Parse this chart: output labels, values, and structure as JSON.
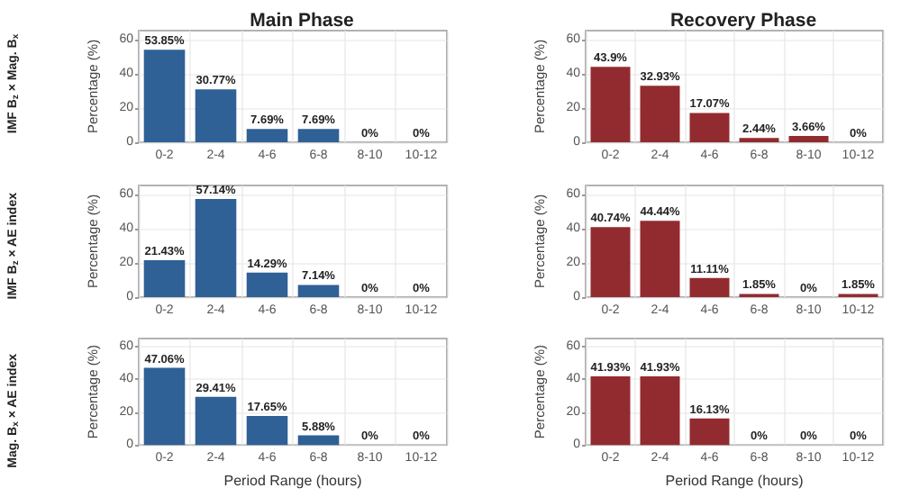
{
  "chart_data": [
    {
      "type": "bar",
      "title": "Main Phase",
      "ylabel": "Percentage (%)",
      "annotations": [
        "IMF B$_{z}$ × Mag. B$_{x}$"
      ],
      "categories": [
        "0-2",
        "2-4",
        "4-6",
        "6-8",
        "8-10",
        "10-12"
      ],
      "values": [
        53.85,
        30.77,
        7.69,
        7.69,
        0,
        0
      ],
      "value_labels": [
        "53.85%",
        "30.77%",
        "7.69%",
        "7.69%",
        "0%",
        "0%"
      ],
      "color": "#2f6096",
      "ylim": [
        0,
        65
      ],
      "yticks": [
        0,
        20,
        40,
        60
      ],
      "grid": true
    },
    {
      "type": "bar",
      "title": "Recovery Phase",
      "ylabel": "Percentage (%)",
      "categories": [
        "0-2",
        "2-4",
        "4-6",
        "6-8",
        "8-10",
        "10-12"
      ],
      "values": [
        43.9,
        32.93,
        17.07,
        2.44,
        3.66,
        0
      ],
      "value_labels": [
        "43.9%",
        "32.93%",
        "17.07%",
        "2.44%",
        "3.66%",
        "0%"
      ],
      "color": "#922b2f",
      "ylim": [
        0,
        65
      ],
      "yticks": [
        0,
        20,
        40,
        60
      ],
      "grid": true
    },
    {
      "type": "bar",
      "ylabel": "Percentage (%)",
      "annotations": [
        "IMF B$_{z}$ × AE index"
      ],
      "categories": [
        "0-2",
        "2-4",
        "4-6",
        "6-8",
        "8-10",
        "10-12"
      ],
      "values": [
        21.43,
        57.14,
        14.29,
        7.14,
        0,
        0
      ],
      "value_labels": [
        "21.43%",
        "57.14%",
        "14.29%",
        "7.14%",
        "0%",
        "0%"
      ],
      "color": "#2f6096",
      "ylim": [
        0,
        65
      ],
      "yticks": [
        0,
        20,
        40,
        60
      ],
      "grid": true
    },
    {
      "type": "bar",
      "ylabel": "Percentage (%)",
      "categories": [
        "0-2",
        "2-4",
        "4-6",
        "6-8",
        "8-10",
        "10-12"
      ],
      "values": [
        40.74,
        44.44,
        11.11,
        1.85,
        0,
        1.85
      ],
      "value_labels": [
        "40.74%",
        "44.44%",
        "11.11%",
        "1.85%",
        "0%",
        "1.85%"
      ],
      "color": "#922b2f",
      "ylim": [
        0,
        65
      ],
      "yticks": [
        0,
        20,
        40,
        60
      ],
      "grid": true
    },
    {
      "type": "bar",
      "xlabel": "Period Range (hours)",
      "ylabel": "Percentage (%)",
      "annotations": [
        "Mag. B$_{x}$ × AE index"
      ],
      "categories": [
        "0-2",
        "2-4",
        "4-6",
        "6-8",
        "8-10",
        "10-12"
      ],
      "values": [
        47.06,
        29.41,
        17.65,
        5.88,
        0,
        0
      ],
      "value_labels": [
        "47.06%",
        "29.41%",
        "17.65%",
        "5.88%",
        "0%",
        "0%"
      ],
      "color": "#2f6096",
      "ylim": [
        0,
        65
      ],
      "yticks": [
        0,
        20,
        40,
        60
      ],
      "grid": true
    },
    {
      "type": "bar",
      "xlabel": "Period Range (hours)",
      "ylabel": "Percentage (%)",
      "categories": [
        "0-2",
        "2-4",
        "4-6",
        "6-8",
        "8-10",
        "10-12"
      ],
      "values": [
        41.93,
        41.93,
        16.13,
        0,
        0,
        0
      ],
      "value_labels": [
        "41.93%",
        "41.93%",
        "16.13%",
        "0%",
        "0%",
        "0%"
      ],
      "color": "#922b2f",
      "ylim": [
        0,
        65
      ],
      "yticks": [
        0,
        20,
        40,
        60
      ],
      "grid": true
    }
  ]
}
